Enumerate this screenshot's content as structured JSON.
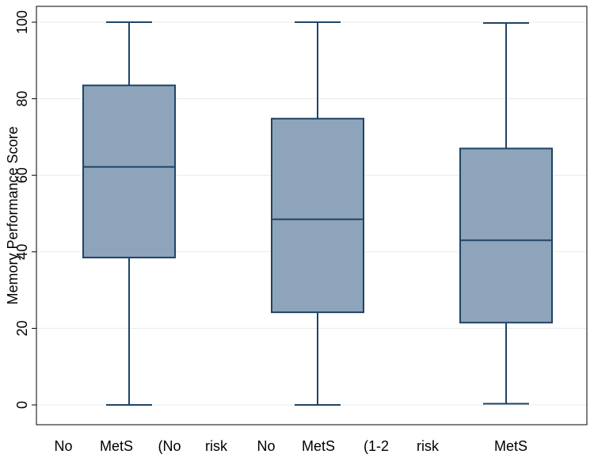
{
  "chart_data": {
    "type": "box",
    "title": "",
    "ylabel": "Memory Performance Score",
    "xlabel": "",
    "ylim": [
      0,
      100
    ],
    "yticks": [
      0,
      20,
      40,
      60,
      80,
      100
    ],
    "ytick_labels": [
      "0",
      "20",
      "40",
      "60",
      "80",
      "100"
    ],
    "grid": true,
    "category_label_words": [
      "No",
      "MetS",
      "(No",
      "risk",
      "No",
      "MetS",
      "(1-2",
      "risk",
      "MetS"
    ],
    "series": [
      {
        "name": "box-1",
        "min": 0,
        "q1": 38.5,
        "median": 62.2,
        "q3": 83.5,
        "max": 100
      },
      {
        "name": "box-2",
        "min": 0,
        "q1": 24.2,
        "median": 48.5,
        "q3": 74.8,
        "max": 100
      },
      {
        "name": "box-3",
        "min": 0.3,
        "q1": 21.5,
        "median": 43.0,
        "q3": 67.0,
        "max": 99.8
      }
    ],
    "colors": {
      "box_fill": "#8ea4ba",
      "box_stroke": "#1f4466",
      "grid": "#e6ebef",
      "frame": "#000000"
    }
  }
}
